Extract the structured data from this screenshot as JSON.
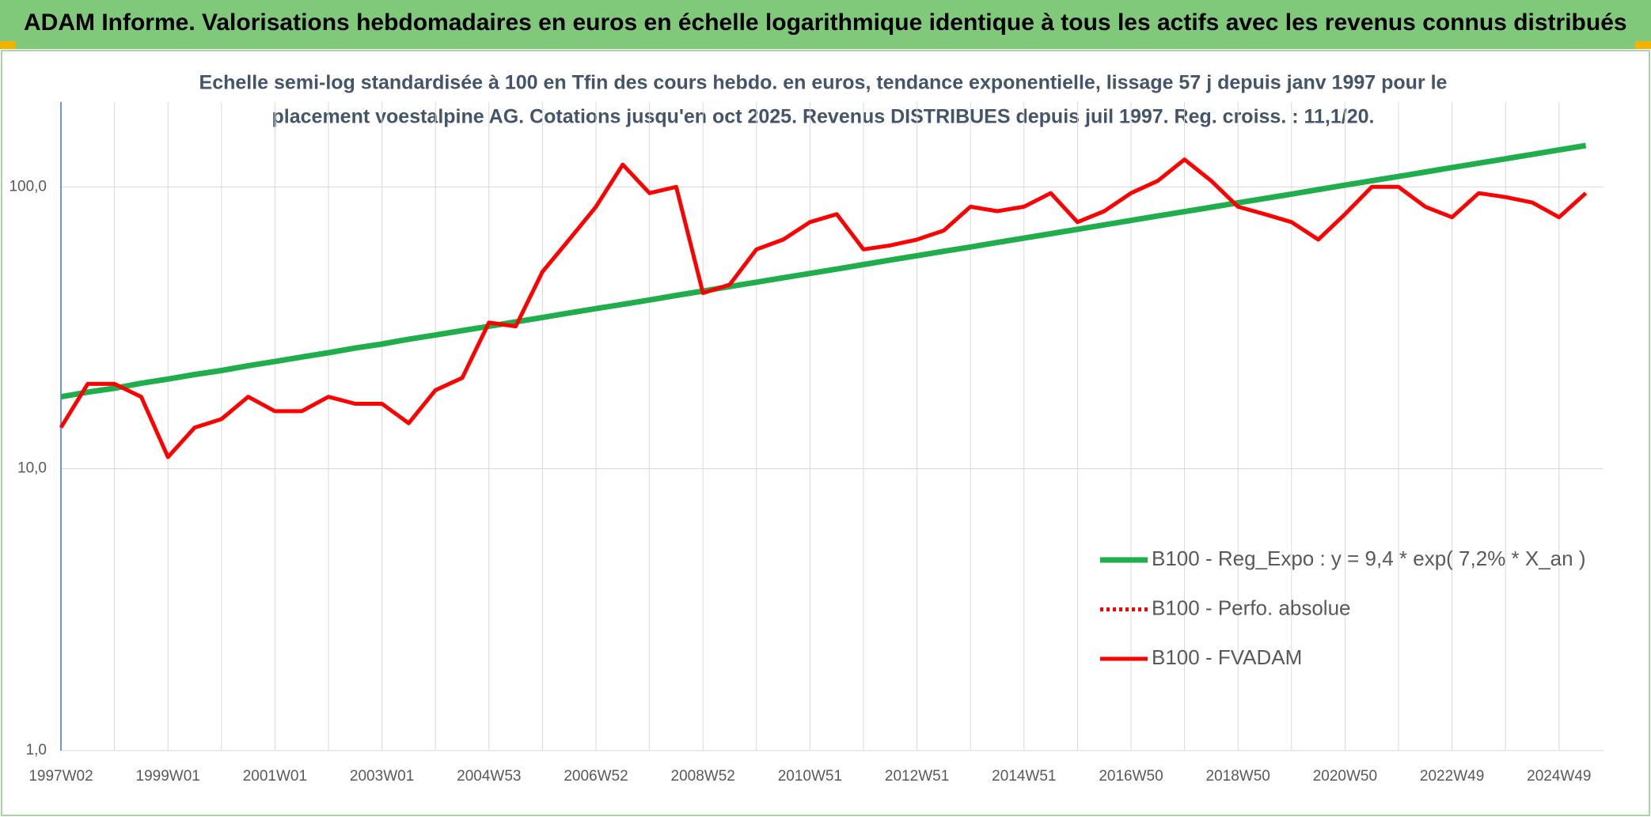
{
  "chart_data": {
    "type": "line",
    "title": "ADAM Informe. Valorisations hebdomadaires en euros en échelle logarithmique identique à tous les actifs avec les revenus connus distribués",
    "subtitle": [
      "Echelle semi-log standardisée à 100 en Tfin des cours hebdo. en euros, tendance exponentielle, lissage 57 j depuis janv 1997 pour le",
      "placement voestalpine AG. Cotations jusqu'en oct 2025. Revenus DISTRIBUES depuis juil 1997. Reg. croiss. : 11,1/20."
    ],
    "categories": [
      "1997W02",
      null,
      null,
      null,
      "1999W01",
      null,
      null,
      null,
      "2001W01",
      null,
      null,
      null,
      "2003W01",
      null,
      null,
      null,
      "2004W53",
      null,
      null,
      null,
      "2006W52",
      null,
      null,
      null,
      "2008W52",
      null,
      null,
      null,
      "2010W51",
      null,
      null,
      null,
      "2012W51",
      null,
      null,
      null,
      "2014W51",
      null,
      null,
      null,
      "2016W50",
      null,
      null,
      null,
      "2018W50",
      null,
      null,
      null,
      "2020W50",
      null,
      null,
      null,
      "2022W49",
      null,
      null,
      null,
      "2024W49",
      null
    ],
    "log_scale": true,
    "ylim": [
      1,
      200
    ],
    "yticks": [
      {
        "value": 1,
        "label": "1,0"
      },
      {
        "value": 10,
        "label": "10,0"
      },
      {
        "value": 100,
        "label": "100,0"
      }
    ],
    "grid": true,
    "legend": "lower right",
    "series": [
      {
        "name": "B100 - Reg_Expo : y = 9,4 * exp( 7,2% *  X_an )",
        "color": "#1fae4b",
        "style": "solid",
        "values": [
          18.0,
          18.7,
          19.3,
          20.1,
          20.8,
          21.6,
          22.3,
          23.2,
          24.0,
          24.9,
          25.8,
          26.8,
          27.7,
          28.8,
          29.8,
          30.9,
          32.0,
          33.2,
          34.4,
          35.7,
          37.0,
          38.3,
          39.7,
          41.2,
          42.7,
          44.3,
          45.9,
          47.6,
          49.3,
          51.1,
          53.0,
          55.0,
          57.0,
          59.1,
          61.2,
          63.5,
          65.8,
          68.2,
          70.7,
          73.3,
          76.0,
          78.8,
          81.7,
          84.7,
          87.8,
          91.0,
          94.3,
          97.8,
          101.4,
          105.1,
          108.9,
          112.9,
          117.1,
          121.4,
          125.8,
          130.4,
          135.2,
          140.2
        ]
      },
      {
        "name": "B100 - Perfo. absolue",
        "color": "#ff0000",
        "style": "dotted",
        "values": [
          null,
          null,
          null,
          null,
          null,
          null,
          null,
          null,
          null,
          null,
          null,
          null,
          null,
          null,
          null,
          null,
          null,
          null,
          null,
          null,
          null,
          null,
          null,
          null,
          null,
          null,
          null,
          null,
          null,
          null,
          null,
          null,
          null,
          null,
          null,
          null,
          null,
          null,
          null,
          null,
          null,
          null,
          null,
          null,
          null,
          null,
          null,
          null,
          null,
          null,
          null,
          null,
          null,
          null,
          null,
          null,
          null,
          null
        ]
      },
      {
        "name": "B100 - FVADAM",
        "color": "#ff0000",
        "style": "solid",
        "values": [
          14,
          20,
          20,
          18,
          11,
          14,
          15,
          18,
          16,
          16,
          18,
          17,
          17,
          14.5,
          19,
          21,
          33,
          32,
          50,
          65,
          85,
          120,
          95,
          100,
          42,
          45,
          60,
          65,
          75,
          80,
          60,
          62,
          65,
          70,
          85,
          82,
          85,
          95,
          75,
          82,
          95,
          105,
          125,
          105,
          85,
          80,
          75,
          65,
          80,
          100,
          100,
          85,
          78,
          95,
          92,
          88,
          78,
          95
        ]
      }
    ]
  }
}
